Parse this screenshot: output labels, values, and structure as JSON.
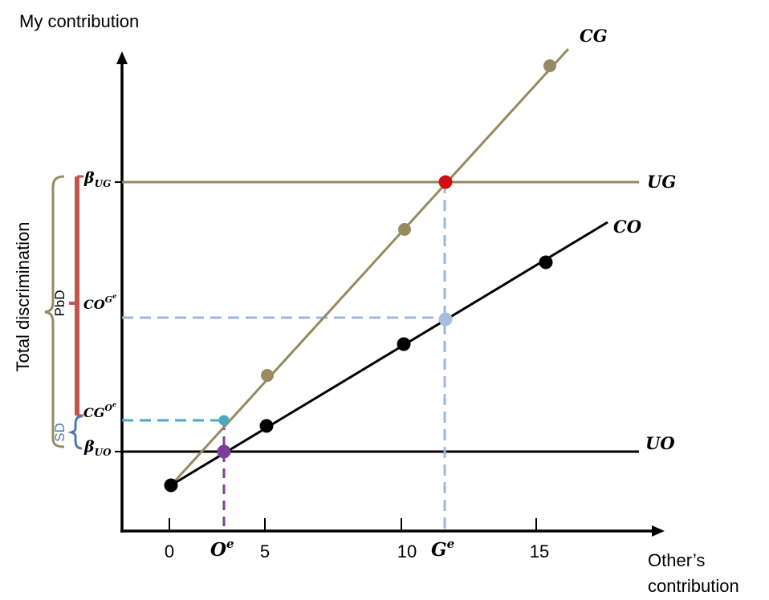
{
  "axes": {
    "y_title": "My contribution",
    "x_title_line1": "Other’s",
    "x_title_line2": "contribution",
    "x_ticks": [
      {
        "value": 0,
        "label": "0"
      },
      {
        "value": 5,
        "label": "5"
      },
      {
        "value": 10,
        "label": "10"
      },
      {
        "value": 15,
        "label": "15"
      }
    ]
  },
  "lines": {
    "cg": "CG",
    "ug": "UG",
    "co": "CO",
    "uo": "UO"
  },
  "x_markers": {
    "oe_base": "O",
    "oe_sup": "e",
    "ge_base": "G",
    "ge_sup": "e"
  },
  "y_markers": {
    "beta_ug_base": "β",
    "beta_ug_sub": "UG",
    "co_ge_base": "CO",
    "co_ge_sup_base": "G",
    "co_ge_sup_sup": "e",
    "cg_oe_base": "CG",
    "cg_oe_sup_base": "O",
    "cg_oe_sup_sup": "e",
    "beta_uo_base": "β",
    "beta_uo_sub": "UO"
  },
  "brackets": {
    "total": "Total discrimination",
    "pbd": "PbD",
    "sd": "SD"
  },
  "colors": {
    "olive": "#968A5E",
    "black": "#000000",
    "red": "#D0100E",
    "bracket_red": "#C4524E",
    "blue_dash": "#9CB8D8",
    "light_blue_point": "#A3BEDE",
    "teal": "#4AAAC0",
    "purple": "#7B3F9A",
    "sd_blue": "#4A78B8"
  },
  "chart_data": {
    "type": "line",
    "xlabel": "Other’s contribution",
    "ylabel": "My contribution",
    "xlim": [
      -1.8,
      18.3
    ],
    "x_ticks": [
      0,
      5,
      10,
      15
    ],
    "series": [
      {
        "name": "CG",
        "color": "#968A5E",
        "x": [
          0,
          5,
          10,
          15.5
        ],
        "y": [
          0.63,
          2.04,
          3.96,
          6.08
        ],
        "line_x": [
          0,
          14.8
        ],
        "line_y_slope": 0.364,
        "line_y_intercept": 0.63
      },
      {
        "name": "CO",
        "color": "#000000",
        "x": [
          0,
          5,
          10,
          15.2
        ],
        "y": [
          0.63,
          1.46,
          2.49,
          3.52
        ],
        "line_x": [
          0,
          16.2
        ],
        "line_y_slope": 0.197,
        "line_y_intercept": 0.63
      }
    ],
    "horizontal_lines": [
      {
        "name": "UG",
        "y": 4.6
      },
      {
        "name": "UO",
        "y": 1.2
      }
    ],
    "key_points": [
      {
        "name": "UG∩CG",
        "x": 10.6,
        "y": 4.6,
        "color": "#D0100E"
      },
      {
        "name": "CO at G^e",
        "x": 10.6,
        "y": 2.7,
        "color": "#A3BEDE"
      },
      {
        "name": "CG at O^e",
        "x": 2.0,
        "y": 1.4,
        "color": "#4AAAC0"
      },
      {
        "name": "UO∩CO",
        "x": 2.0,
        "y": 1.2,
        "color": "#7B3F9A"
      }
    ],
    "x_markers": [
      {
        "name": "O^e",
        "x": 2.0
      },
      {
        "name": "G^e",
        "x": 10.6
      }
    ]
  }
}
